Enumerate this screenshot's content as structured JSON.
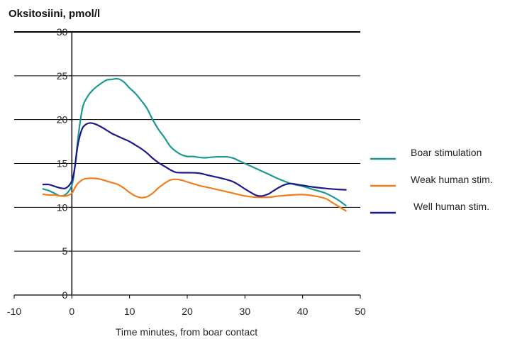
{
  "chart_data": {
    "type": "line",
    "title": "",
    "ylabel": "Oksitosiini, pmol/l",
    "xlabel": "Time minutes, from boar contact",
    "xlim": [
      -10,
      50
    ],
    "ylim": [
      0,
      30
    ],
    "x_ticks": [
      "-10",
      "0",
      "10",
      "20",
      "30",
      "40",
      "50"
    ],
    "y_ticks": [
      "0",
      "5",
      "10",
      "15",
      "20",
      "25",
      "30"
    ],
    "grid": "horizontal",
    "legend_position": "right",
    "series": [
      {
        "name": "Boar stimulation",
        "color": "#1a9a8e",
        "points": [
          [
            -5,
            12.1
          ],
          [
            -4,
            11.9
          ],
          [
            -3,
            11.6
          ],
          [
            -2,
            11.3
          ],
          [
            -1,
            11.5
          ],
          [
            0,
            12.5
          ],
          [
            0.5,
            14.5
          ],
          [
            1,
            17.5
          ],
          [
            1.5,
            20
          ],
          [
            2,
            21.7
          ],
          [
            3,
            22.9
          ],
          [
            4,
            23.6
          ],
          [
            5,
            24.1
          ],
          [
            6,
            24.5
          ],
          [
            7,
            24.6
          ],
          [
            8,
            24.65
          ],
          [
            9,
            24.3
          ],
          [
            10,
            23.6
          ],
          [
            11,
            23
          ],
          [
            12,
            22.2
          ],
          [
            13,
            21.3
          ],
          [
            14,
            20
          ],
          [
            15,
            18.9
          ],
          [
            16,
            18
          ],
          [
            17,
            17
          ],
          [
            18,
            16.4
          ],
          [
            19,
            16
          ],
          [
            20,
            15.8
          ],
          [
            21,
            15.8
          ],
          [
            22,
            15.7
          ],
          [
            23,
            15.65
          ],
          [
            24,
            15.7
          ],
          [
            25,
            15.75
          ],
          [
            26,
            15.75
          ],
          [
            27,
            15.75
          ],
          [
            28,
            15.6
          ],
          [
            29,
            15.3
          ],
          [
            30,
            15
          ],
          [
            32,
            14.4
          ],
          [
            34,
            13.8
          ],
          [
            36,
            13.2
          ],
          [
            38,
            12.7
          ],
          [
            40,
            12.4
          ],
          [
            42,
            12
          ],
          [
            44,
            11.6
          ],
          [
            46,
            10.9
          ],
          [
            47.5,
            10.2
          ]
        ]
      },
      {
        "name": "Weak human stim.",
        "color": "#f07d1a",
        "points": [
          [
            -5,
            11.5
          ],
          [
            -4,
            11.4
          ],
          [
            -3,
            11.4
          ],
          [
            -2,
            11.3
          ],
          [
            -1,
            11.3
          ],
          [
            0,
            11.6
          ],
          [
            0.5,
            12.2
          ],
          [
            1,
            12.7
          ],
          [
            2,
            13.2
          ],
          [
            3,
            13.3
          ],
          [
            4,
            13.3
          ],
          [
            5,
            13.2
          ],
          [
            6,
            13
          ],
          [
            7,
            12.8
          ],
          [
            8,
            12.6
          ],
          [
            9,
            12.2
          ],
          [
            10,
            11.7
          ],
          [
            11,
            11.3
          ],
          [
            12,
            11.1
          ],
          [
            13,
            11.2
          ],
          [
            14,
            11.6
          ],
          [
            15,
            12.2
          ],
          [
            16,
            12.7
          ],
          [
            17,
            13.1
          ],
          [
            18,
            13.2
          ],
          [
            19,
            13.1
          ],
          [
            20,
            12.9
          ],
          [
            22,
            12.5
          ],
          [
            24,
            12.2
          ],
          [
            26,
            11.9
          ],
          [
            28,
            11.6
          ],
          [
            30,
            11.3
          ],
          [
            32,
            11.15
          ],
          [
            34,
            11.15
          ],
          [
            36,
            11.3
          ],
          [
            38,
            11.4
          ],
          [
            40,
            11.45
          ],
          [
            42,
            11.3
          ],
          [
            44,
            11
          ],
          [
            45,
            10.6
          ],
          [
            46,
            10.2
          ],
          [
            47.5,
            9.6
          ]
        ]
      },
      {
        "name": "Well human stim.",
        "color": "#1a1a8c",
        "points": [
          [
            -5,
            12.6
          ],
          [
            -4,
            12.6
          ],
          [
            -3,
            12.4
          ],
          [
            -2,
            12.2
          ],
          [
            -1,
            12.2
          ],
          [
            0,
            13
          ],
          [
            0.5,
            14.5
          ],
          [
            1,
            17
          ],
          [
            1.5,
            18.4
          ],
          [
            2,
            19.2
          ],
          [
            3,
            19.6
          ],
          [
            4,
            19.5
          ],
          [
            5,
            19.2
          ],
          [
            6,
            18.8
          ],
          [
            7,
            18.4
          ],
          [
            8,
            18.1
          ],
          [
            9,
            17.8
          ],
          [
            10,
            17.5
          ],
          [
            11,
            17.1
          ],
          [
            12,
            16.7
          ],
          [
            13,
            16.2
          ],
          [
            14,
            15.6
          ],
          [
            15,
            15.1
          ],
          [
            16,
            14.7
          ],
          [
            17,
            14.3
          ],
          [
            18,
            14
          ],
          [
            19,
            13.95
          ],
          [
            20,
            13.95
          ],
          [
            22,
            13.9
          ],
          [
            24,
            13.6
          ],
          [
            26,
            13.3
          ],
          [
            28,
            12.9
          ],
          [
            30,
            12.1
          ],
          [
            31,
            11.7
          ],
          [
            32,
            11.35
          ],
          [
            33,
            11.3
          ],
          [
            34,
            11.5
          ],
          [
            35,
            11.9
          ],
          [
            36,
            12.3
          ],
          [
            37,
            12.6
          ],
          [
            38,
            12.7
          ],
          [
            40,
            12.5
          ],
          [
            42,
            12.3
          ],
          [
            44,
            12.15
          ],
          [
            46,
            12.05
          ],
          [
            47.5,
            12
          ]
        ]
      }
    ]
  }
}
